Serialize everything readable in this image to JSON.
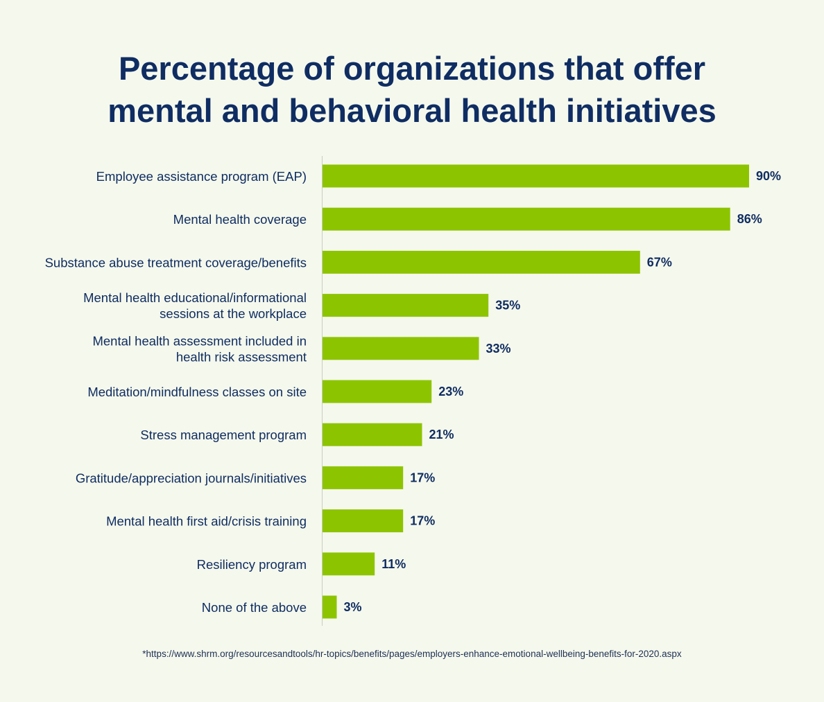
{
  "title_lines": [
    "Percentage of organizations that offer",
    "mental and behavioral health initiatives"
  ],
  "footnote": "*https://www.shrm.org/resourcesandtools/hr-topics/benefits/pages/employers-enhance-emotional-wellbeing-benefits-for-2020.aspx",
  "colors": {
    "bar": "#8dc400",
    "text": "#0f2d63",
    "background": "#f5f8ec",
    "axis": "#c9ccc2"
  },
  "chart_data": {
    "type": "bar",
    "orientation": "horizontal",
    "title": "Percentage of organizations that offer mental and behavioral health initiatives",
    "xlabel": "",
    "ylabel": "",
    "grid": false,
    "legend": "none",
    "value_suffix": "%",
    "xlim": [
      0,
      90
    ],
    "categories": [
      [
        "Employee assistance program (EAP)"
      ],
      [
        "Mental health coverage"
      ],
      [
        "Substance abuse treatment coverage/benefits"
      ],
      [
        "Mental health educational/informational",
        "sessions at the workplace"
      ],
      [
        "Mental health assessment included in",
        "health risk assessment"
      ],
      [
        "Meditation/mindfulness classes on site"
      ],
      [
        "Stress management program"
      ],
      [
        "Gratitude/appreciation journals/initiatives"
      ],
      [
        "Mental health first aid/crisis training"
      ],
      [
        "Resiliency program"
      ],
      [
        "None of the above"
      ]
    ],
    "values": [
      90,
      86,
      67,
      35,
      33,
      23,
      21,
      17,
      17,
      11,
      3
    ],
    "data_labels": [
      "90%",
      "86%",
      "67%",
      "35%",
      "33%",
      "23%",
      "21%",
      "17%",
      "17%",
      "11%",
      "3%"
    ]
  }
}
